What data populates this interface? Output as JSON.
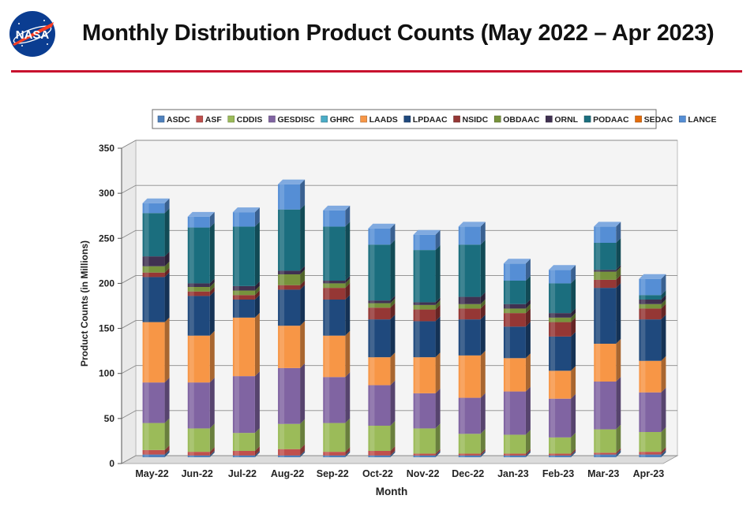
{
  "logo": {
    "text": "NASA",
    "colors": {
      "blue": "#0b3d91",
      "red": "#fc3d21"
    }
  },
  "page_title": "Monthly Distribution Product Counts (May 2022 – Apr 2023)",
  "chart_data": {
    "type": "bar",
    "stacked": true,
    "title": "",
    "xlabel": "Month",
    "ylabel": "Product Counts (in Millions)",
    "ylim": [
      0,
      350
    ],
    "yticks": [
      0,
      50,
      100,
      150,
      200,
      250,
      300,
      350
    ],
    "grid": true,
    "legend_position": "top",
    "categories": [
      "May-22",
      "Jun-22",
      "Jul-22",
      "Aug-22",
      "Sep-22",
      "Oct-22",
      "Nov-22",
      "Dec-22",
      "Jan-23",
      "Feb-23",
      "Mar-23",
      "Apr-23"
    ],
    "series": [
      {
        "name": "ASDC",
        "color": "#4f81bd",
        "values": [
          3,
          2,
          2,
          2,
          2,
          2,
          2,
          2,
          2,
          2,
          3,
          3
        ]
      },
      {
        "name": "ASF",
        "color": "#c0504d",
        "values": [
          5,
          4,
          5,
          7,
          4,
          5,
          2,
          2,
          2,
          2,
          2,
          3
        ]
      },
      {
        "name": "CDDIS",
        "color": "#9bbb59",
        "values": [
          30,
          26,
          20,
          28,
          32,
          28,
          28,
          22,
          21,
          18,
          26,
          22
        ]
      },
      {
        "name": "GESDISC",
        "color": "#8064a2",
        "values": [
          45,
          51,
          63,
          62,
          51,
          45,
          39,
          40,
          48,
          43,
          53,
          44
        ]
      },
      {
        "name": "GHRC",
        "color": "#4bacc6",
        "values": [
          0,
          0,
          0,
          0,
          0,
          0,
          0,
          0,
          0,
          0,
          0,
          0
        ]
      },
      {
        "name": "LAADS",
        "color": "#f79646",
        "values": [
          67,
          52,
          65,
          47,
          46,
          31,
          40,
          47,
          37,
          31,
          42,
          35
        ]
      },
      {
        "name": "LPDAAC",
        "color": "#1f497d",
        "values": [
          50,
          44,
          20,
          40,
          40,
          42,
          40,
          40,
          35,
          38,
          62,
          46
        ]
      },
      {
        "name": "NSIDC",
        "color": "#953735",
        "values": [
          5,
          5,
          5,
          5,
          13,
          13,
          13,
          12,
          15,
          16,
          9,
          12
        ]
      },
      {
        "name": "OBDAAC",
        "color": "#77933c",
        "values": [
          7,
          5,
          5,
          12,
          5,
          5,
          5,
          5,
          5,
          5,
          9,
          5
        ]
      },
      {
        "name": "ORNL",
        "color": "#403151",
        "values": [
          11,
          4,
          5,
          4,
          3,
          3,
          3,
          8,
          5,
          5,
          2,
          5
        ]
      },
      {
        "name": "PODAAC",
        "color": "#1b6e7e",
        "values": [
          48,
          62,
          66,
          68,
          60,
          62,
          58,
          58,
          26,
          33,
          30,
          5
        ]
      },
      {
        "name": "SEDAC",
        "color": "#e46c0a",
        "values": [
          0,
          0,
          0,
          0,
          0,
          0,
          0,
          0,
          0,
          0,
          0,
          0
        ]
      },
      {
        "name": "LANCE",
        "color": "#558ed5",
        "values": [
          11,
          12,
          16,
          28,
          18,
          18,
          17,
          20,
          19,
          15,
          18,
          18
        ]
      }
    ]
  }
}
